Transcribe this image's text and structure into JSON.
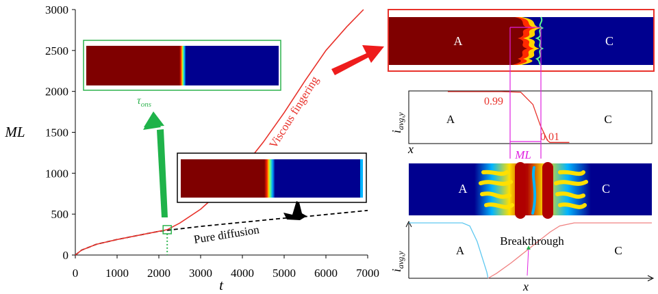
{
  "colors": {
    "fingering_curve": "#e8312a",
    "diffusion_curve": "#000000",
    "displacing_fluid": "#7f0000",
    "displaced_fluid": "#00008f",
    "onset_marker": "#2bb24c",
    "ml_marker": "#e020e0",
    "cyan_profile": "#5ec8f0",
    "red_profile": "#f08080",
    "red_arrow": "#ee1c1c",
    "green_arrow": "#1fb34a",
    "black_arrow": "#000000"
  },
  "chart_data": [
    {
      "type": "line",
      "xlabel": "t",
      "ylabel": "ML",
      "xlim": [
        0,
        7000
      ],
      "ylim": [
        0,
        3000
      ],
      "xticks": [
        "0",
        "1000",
        "2000",
        "3000",
        "4000",
        "5000",
        "6000",
        "7000"
      ],
      "yticks": [
        "0",
        "500",
        "1000",
        "1500",
        "2000",
        "2500",
        "3000"
      ],
      "grid": false,
      "series": [
        {
          "name": "Viscous fingering",
          "style": "solid",
          "x": [
            0,
            150,
            500,
            1000,
            1500,
            2000,
            2200,
            2500,
            3000,
            3500,
            4000,
            4500,
            5000,
            5500,
            6000,
            6500,
            6900
          ],
          "y": [
            0,
            60,
            130,
            190,
            240,
            290,
            310,
            390,
            560,
            790,
            1060,
            1380,
            1740,
            2130,
            2500,
            2790,
            3000
          ]
        },
        {
          "name": "Pure diffusion",
          "style": "dashed",
          "x": [
            0,
            150,
            500,
            1000,
            1500,
            2000,
            2500,
            3000,
            3500,
            4000,
            4500,
            5000,
            5500,
            6000,
            6500,
            7000
          ],
          "y": [
            0,
            60,
            130,
            190,
            240,
            290,
            320,
            350,
            375,
            400,
            425,
            450,
            470,
            495,
            520,
            545
          ]
        }
      ],
      "annotations": {
        "onset_label": "τ",
        "onset_label_sub": "ons",
        "onset_t": 2200,
        "fingering_label": "Viscous fingering",
        "diffusion_label": "Pure diffusion"
      }
    },
    {
      "type": "line",
      "xlabel": "x",
      "ylabel": "i",
      "ylabel_sub": "avg,y",
      "grid": false,
      "series": [
        {
          "name": "",
          "x": [
            0.0,
            0.22,
            0.3,
            0.35,
            0.38,
            0.41,
            0.42,
            0.5
          ],
          "y": [
            1.0,
            1.0,
            0.99,
            0.75,
            0.35,
            0.05,
            0.01,
            0.01
          ]
        }
      ],
      "annotations": {
        "upper_value": "0.99",
        "lower_value": "0.01",
        "left_region": "A",
        "right_region": "C",
        "mixing_length": "ML"
      }
    },
    {
      "type": "line",
      "xlabel": "x",
      "ylabel": "i",
      "ylabel_sub": "avg,y",
      "grid": false,
      "series": [
        {
          "name": "",
          "x": [
            0.0,
            0.22,
            0.25,
            0.28,
            0.3,
            0.32,
            0.325
          ],
          "y": [
            0.9,
            0.9,
            0.85,
            0.6,
            0.35,
            0.1,
            0.0
          ]
        },
        {
          "name": "",
          "x": [
            0.325,
            0.36,
            0.42,
            0.5,
            0.58,
            0.62,
            0.68,
            1.0
          ],
          "y": [
            0.0,
            0.08,
            0.25,
            0.5,
            0.75,
            0.85,
            0.9,
            0.9
          ]
        }
      ],
      "annotations": {
        "breakthrough": "Breakthrough",
        "left_region": "A",
        "right_region": "C"
      }
    }
  ],
  "panels": {
    "panel_top_a": "A",
    "panel_top_c": "C",
    "panel_bottom_a": "A",
    "panel_bottom_c": "C"
  }
}
